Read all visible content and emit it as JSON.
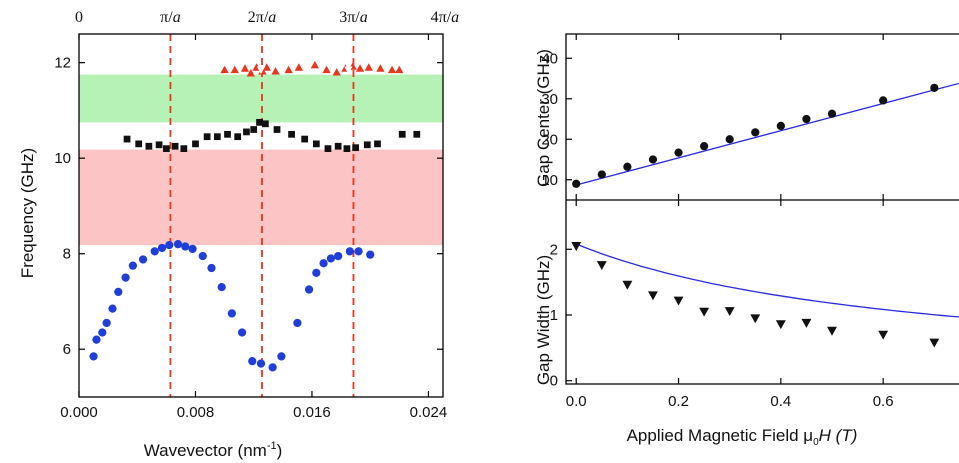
{
  "chart_data": [
    {
      "type": "scatter",
      "xlabel": "Wavevector (nm",
      "xlabel_sup": "-1",
      "xlabel_close": ")",
      "ylabel": "Frequency (GHz)",
      "xlim": [
        0.0,
        0.025
      ],
      "ylim": [
        5.0,
        12.6
      ],
      "xticks": [
        0.0,
        0.008,
        0.016,
        0.024
      ],
      "xtick_labels": [
        "0.000",
        "0.008",
        "0.016",
        "0.024"
      ],
      "yticks": [
        6,
        8,
        10,
        12
      ],
      "ytick_labels": [
        "6",
        "8",
        "10",
        "12"
      ],
      "top_axis": {
        "ticks": [
          0.0,
          0.00628,
          0.01257,
          0.01885,
          0.02513
        ],
        "labels": [
          "0",
          "π/a",
          "2π/a",
          "3π/a",
          "4π/a"
        ]
      },
      "vlines": [
        0.00628,
        0.01257,
        0.01885
      ],
      "bands": [
        {
          "y0": 10.75,
          "y1": 11.75,
          "color": "#b6f2b6"
        },
        {
          "y0": 8.18,
          "y1": 10.18,
          "color": "#fcc4c4"
        }
      ],
      "series": [
        {
          "marker": "circle",
          "color": "#1f3fd8",
          "points": [
            [
              0.001,
              5.85
            ],
            [
              0.0012,
              6.2
            ],
            [
              0.0016,
              6.35
            ],
            [
              0.0019,
              6.55
            ],
            [
              0.0023,
              6.85
            ],
            [
              0.0027,
              7.2
            ],
            [
              0.0032,
              7.5
            ],
            [
              0.0037,
              7.75
            ],
            [
              0.0044,
              7.88
            ],
            [
              0.0052,
              8.05
            ],
            [
              0.0057,
              8.12
            ],
            [
              0.0062,
              8.18
            ],
            [
              0.0068,
              8.2
            ],
            [
              0.0073,
              8.15
            ],
            [
              0.0078,
              8.1
            ],
            [
              0.0085,
              7.95
            ],
            [
              0.0091,
              7.7
            ],
            [
              0.0098,
              7.3
            ],
            [
              0.0105,
              6.75
            ],
            [
              0.0112,
              6.35
            ],
            [
              0.0119,
              5.75
            ],
            [
              0.0125,
              5.7
            ],
            [
              0.0133,
              5.62
            ],
            [
              0.0139,
              5.85
            ],
            [
              0.015,
              6.55
            ],
            [
              0.0158,
              7.25
            ],
            [
              0.0163,
              7.6
            ],
            [
              0.0168,
              7.8
            ],
            [
              0.0173,
              7.9
            ],
            [
              0.0178,
              7.95
            ],
            [
              0.0186,
              8.05
            ],
            [
              0.0192,
              8.05
            ],
            [
              0.02,
              7.98
            ]
          ]
        },
        {
          "marker": "square",
          "color": "#111111",
          "points": [
            [
              0.0033,
              10.4
            ],
            [
              0.0041,
              10.3
            ],
            [
              0.0048,
              10.25
            ],
            [
              0.0055,
              10.28
            ],
            [
              0.006,
              10.2
            ],
            [
              0.0066,
              10.25
            ],
            [
              0.0072,
              10.2
            ],
            [
              0.008,
              10.3
            ],
            [
              0.0088,
              10.45
            ],
            [
              0.0095,
              10.45
            ],
            [
              0.0102,
              10.5
            ],
            [
              0.0109,
              10.45
            ],
            [
              0.0115,
              10.55
            ],
            [
              0.012,
              10.6
            ],
            [
              0.0124,
              10.75
            ],
            [
              0.0128,
              10.72
            ],
            [
              0.0136,
              10.6
            ],
            [
              0.0146,
              10.5
            ],
            [
              0.0155,
              10.4
            ],
            [
              0.0163,
              10.3
            ],
            [
              0.0171,
              10.2
            ],
            [
              0.0178,
              10.25
            ],
            [
              0.0184,
              10.2
            ],
            [
              0.019,
              10.22
            ],
            [
              0.0198,
              10.28
            ],
            [
              0.0205,
              10.3
            ],
            [
              0.0222,
              10.5
            ],
            [
              0.0232,
              10.5
            ]
          ]
        },
        {
          "marker": "triangle-up",
          "color": "#e8351c",
          "points": [
            [
              0.01,
              11.85
            ],
            [
              0.0107,
              11.85
            ],
            [
              0.0114,
              11.88
            ],
            [
              0.0118,
              11.78
            ],
            [
              0.0122,
              11.9
            ],
            [
              0.0126,
              11.82
            ],
            [
              0.0129,
              11.9
            ],
            [
              0.0135,
              11.82
            ],
            [
              0.0144,
              11.85
            ],
            [
              0.0151,
              11.9
            ],
            [
              0.0162,
              11.95
            ],
            [
              0.017,
              11.85
            ],
            [
              0.0177,
              11.8
            ],
            [
              0.0183,
              11.88
            ],
            [
              0.0188,
              11.92
            ],
            [
              0.0193,
              11.88
            ],
            [
              0.0199,
              11.9
            ],
            [
              0.0207,
              11.88
            ],
            [
              0.0215,
              11.85
            ],
            [
              0.022,
              11.85
            ]
          ]
        },
        {
          "marker": "triangle-down",
          "color": "#ffffff",
          "points": [
            [
              0.0125,
              11.85
            ],
            [
              0.0185,
              11.85
            ]
          ]
        }
      ]
    },
    {
      "type": "scatter",
      "ylabel": "Gap Center (GHz)",
      "xlim": [
        -0.02,
        0.76
      ],
      "ylim": [
        5,
        46
      ],
      "yticks": [
        10,
        20,
        30,
        40
      ],
      "ytick_labels": [
        "10",
        "20",
        "30",
        "40"
      ],
      "xticks": [
        0.0,
        0.2,
        0.4,
        0.6
      ],
      "fit_line": {
        "color": "#2a2ae0",
        "points": [
          [
            0.0,
            8.7
          ],
          [
            0.76,
            34.2
          ]
        ]
      },
      "series": [
        {
          "marker": "circle",
          "color": "#111111",
          "points": [
            [
              0.0,
              9.0
            ],
            [
              0.05,
              11.3
            ],
            [
              0.1,
              13.2
            ],
            [
              0.15,
              15.0
            ],
            [
              0.2,
              16.7
            ],
            [
              0.25,
              18.3
            ],
            [
              0.3,
              20.0
            ],
            [
              0.35,
              21.7
            ],
            [
              0.4,
              23.3
            ],
            [
              0.45,
              25.0
            ],
            [
              0.5,
              26.3
            ],
            [
              0.6,
              29.6
            ],
            [
              0.7,
              32.7
            ]
          ]
        }
      ]
    },
    {
      "type": "scatter",
      "ylabel": "Gap Width (GHz)",
      "xlabel": "Applied Magnetic Field μ",
      "xlabel_sub": "0",
      "xlabel_end": "H (T)",
      "xlim": [
        -0.02,
        0.76
      ],
      "ylim": [
        -0.05,
        2.75
      ],
      "yticks": [
        0,
        1,
        2
      ],
      "ytick_labels": [
        "0",
        "1",
        "2"
      ],
      "xticks": [
        0.0,
        0.2,
        0.4,
        0.6
      ],
      "xtick_labels": [
        "0.0",
        "0.2",
        "0.4",
        "0.6"
      ],
      "fit_curve": {
        "color": "#2a2ae0",
        "x0": 0.0,
        "x1": 0.76,
        "a": 2.08,
        "b": 1.53
      },
      "series": [
        {
          "marker": "triangle-down",
          "color": "#111111",
          "points": [
            [
              0.0,
              2.05
            ],
            [
              0.05,
              1.76
            ],
            [
              0.1,
              1.46
            ],
            [
              0.15,
              1.3
            ],
            [
              0.2,
              1.22
            ],
            [
              0.25,
              1.05
            ],
            [
              0.3,
              1.06
            ],
            [
              0.35,
              0.95
            ],
            [
              0.4,
              0.86
            ],
            [
              0.45,
              0.88
            ],
            [
              0.5,
              0.76
            ],
            [
              0.6,
              0.7
            ],
            [
              0.7,
              0.58
            ]
          ]
        }
      ]
    }
  ]
}
